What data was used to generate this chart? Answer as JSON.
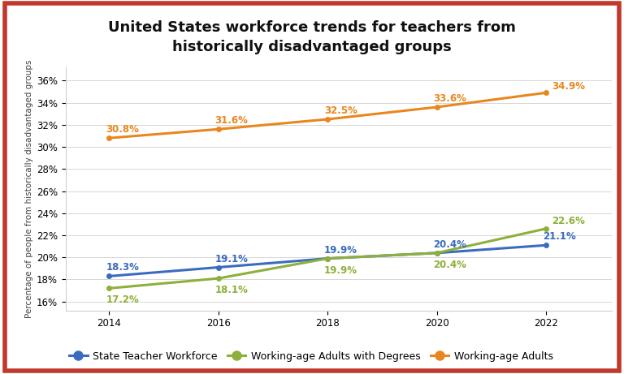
{
  "title": "United States workforce trends for teachers from\nhistorically disadvantaged groups",
  "ylabel": "Percentage of people from historically disadvantaged groups",
  "years": [
    2014,
    2016,
    2018,
    2020,
    2022
  ],
  "series": {
    "State Teacher Workforce": {
      "values": [
        18.3,
        19.1,
        19.9,
        20.4,
        21.1
      ],
      "color": "#3b6bbf",
      "marker": "o"
    },
    "Working-age Adults with Degrees": {
      "values": [
        17.2,
        18.1,
        19.9,
        20.4,
        22.6
      ],
      "color": "#8db03a",
      "marker": "o"
    },
    "Working-age Adults": {
      "values": [
        30.8,
        31.6,
        32.5,
        33.6,
        34.9
      ],
      "color": "#e8871e",
      "marker": "o"
    }
  },
  "yticks": [
    16,
    18,
    20,
    22,
    24,
    26,
    28,
    30,
    32,
    34,
    36
  ],
  "ytick_labels": [
    "16%",
    "18%",
    "20%",
    "22%",
    "24%",
    "26%",
    "28%",
    "30%",
    "32%",
    "34%",
    "36%"
  ],
  "ylim": [
    15.2,
    37.2
  ],
  "xlim": [
    2013.2,
    2023.2
  ],
  "background_color": "#ffffff",
  "border_color": "#c0392b",
  "border_linewidth": 4,
  "title_fontsize": 13,
  "tick_fontsize": 8.5,
  "annotation_fontsize": 8.5,
  "legend_fontsize": 9,
  "axis_label_fontsize": 7.5,
  "line_width": 2.2,
  "marker_size": 4
}
